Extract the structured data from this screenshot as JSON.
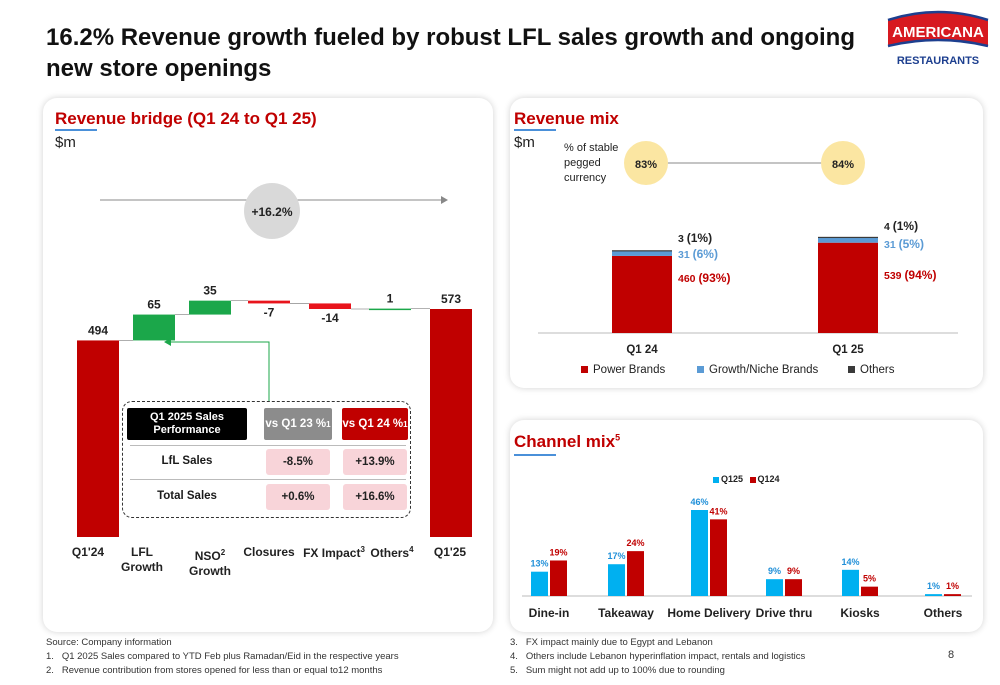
{
  "slide": {
    "title": "16.2% Revenue growth fueled by robust LFL sales growth and ongoing new store openings",
    "page_number": "8",
    "logo": {
      "line1": "AMERICANA",
      "line2": "RESTAURANTS"
    }
  },
  "bridge": {
    "title": "Revenue bridge (Q1 24 to Q1 25)",
    "unit": "$m",
    "growth_badge": "+16.2%",
    "categories": [
      {
        "label": "Q1'24",
        "sup": ""
      },
      {
        "label": "LFL\nGrowth",
        "sup": ""
      },
      {
        "label": "NSO",
        "sup": "2",
        "label2": "Growth"
      },
      {
        "label": "Closures",
        "sup": ""
      },
      {
        "label": "FX Impact",
        "sup": "3"
      },
      {
        "label": "Others",
        "sup": "4"
      },
      {
        "label": "Q1'25",
        "sup": ""
      }
    ],
    "table": {
      "header": "Q1 2025 Sales Performance",
      "col1": "vs Q1 23 %",
      "col1_sup": "1",
      "col2": "vs Q1 24 %",
      "col2_sup": "1",
      "rows": [
        {
          "label": "LfL Sales",
          "v1": "-8.5%",
          "v2": "+13.9%"
        },
        {
          "label": "Total Sales",
          "v1": "+0.6%",
          "v2": "+16.6%"
        }
      ]
    }
  },
  "mix": {
    "title": "Revenue mix",
    "unit": "$m",
    "stable_label": "% of stable pegged currency",
    "stable_q124": "83%",
    "stable_q125": "84%"
  },
  "channel": {
    "title": "Channel mix",
    "title_sup": "5"
  },
  "footnotes": {
    "source": "Source: Company information",
    "left": [
      "1.   Q1 2025 Sales compared to YTD Feb plus Ramadan/Eid in the respective years",
      "2.   Revenue contribution from stores opened for less than or equal to12 months"
    ],
    "right": [
      "3.   FX impact mainly due to Egypt and Lebanon",
      "4.   Others include Lebanon hyperinflation impact, rentals and logistics",
      "5.   Sum might not add up to 100% due to rounding"
    ]
  },
  "colors": {
    "red": "#c00000",
    "bright_red": "#e8141c",
    "green": "#1ba74a",
    "light_blue": "#5b9bd5",
    "cyan": "#00b0f0",
    "dark": "#3a3a3a",
    "gold": "#fbe6a2"
  },
  "chart_data": [
    {
      "type": "bar",
      "subtype": "waterfall",
      "title": "Revenue bridge (Q1 24 to Q1 25)",
      "ylabel": "$m",
      "categories": [
        "Q1'24",
        "LFL Growth",
        "NSO Growth",
        "Closures",
        "FX Impact",
        "Others",
        "Q1'25"
      ],
      "values": [
        494,
        65,
        35,
        -7,
        -14,
        1,
        573
      ],
      "value_labels": [
        "494",
        "65",
        "35",
        "-7",
        "-14",
        "1",
        "573"
      ],
      "measure": [
        "total",
        "relative",
        "relative",
        "relative",
        "relative",
        "relative",
        "total"
      ],
      "annotation": "+16.2%"
    },
    {
      "type": "bar",
      "subtype": "stacked",
      "title": "Revenue mix",
      "ylabel": "$m",
      "categories": [
        "Q1 24",
        "Q1 25"
      ],
      "series": [
        {
          "name": "Power Brands",
          "values": [
            460,
            539
          ],
          "labels": [
            "460",
            "539"
          ],
          "pct": [
            "(93%)",
            "(94%)"
          ]
        },
        {
          "name": "Growth/Niche Brands",
          "values": [
            31,
            31
          ],
          "labels": [
            "31",
            "31"
          ],
          "pct": [
            "(6%)",
            "(5%)"
          ]
        },
        {
          "name": "Others",
          "values": [
            3,
            4
          ],
          "labels": [
            "3",
            "4"
          ],
          "pct": [
            "(1%)",
            "(1%)"
          ]
        }
      ],
      "legend": "bottom"
    },
    {
      "type": "bar",
      "subtype": "grouped",
      "title": "Channel mix",
      "categories": [
        "Dine-in",
        "Takeaway",
        "Home Delivery",
        "Drive thru",
        "Kiosks",
        "Others"
      ],
      "series": [
        {
          "name": "Q125",
          "values": [
            13,
            17,
            46,
            9,
            14,
            1
          ]
        },
        {
          "name": "Q124",
          "values": [
            19,
            24,
            41,
            9,
            5,
            1
          ]
        }
      ],
      "unit": "%",
      "legend": "top"
    }
  ]
}
